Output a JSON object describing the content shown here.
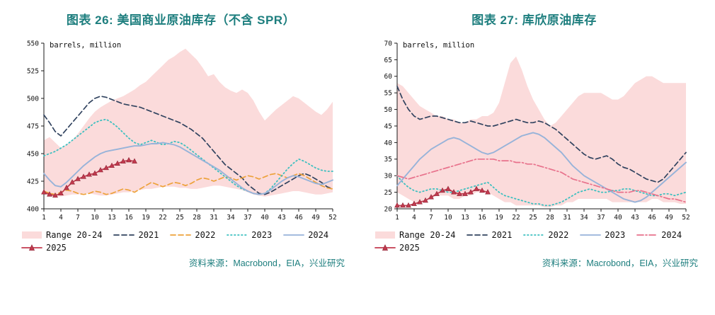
{
  "colors": {
    "accent_teal": "#1d7e7e",
    "axis": "#1a1a1a",
    "range_pink": "#fbdbdb"
  },
  "chart_data": [
    {
      "type": "line",
      "title": "图表 26: 美国商业原油库存（不含 SPR）",
      "unit_label": "barrels, million",
      "source": "资料来源：Macrobond，EIA，兴业研究",
      "xlabel": "",
      "ylabel": "barrels, million",
      "x_range": [
        1,
        52
      ],
      "xticks": [
        1,
        4,
        7,
        10,
        13,
        16,
        19,
        22,
        25,
        28,
        31,
        34,
        37,
        40,
        43,
        46,
        49,
        52
      ],
      "ylim": [
        400,
        550
      ],
      "yticks": [
        400,
        425,
        450,
        475,
        500,
        525,
        550
      ],
      "grid": false,
      "legend_position": "bottom",
      "range_band": {
        "name": "Range 20-24",
        "fill": "#fbdbdb",
        "upper": [
          462,
          465,
          460,
          455,
          458,
          462,
          468,
          475,
          482,
          488,
          492,
          495,
          498,
          500,
          502,
          505,
          508,
          512,
          515,
          520,
          525,
          530,
          535,
          538,
          542,
          545,
          540,
          535,
          528,
          520,
          522,
          515,
          510,
          507,
          505,
          508,
          505,
          498,
          488,
          480,
          485,
          490,
          494,
          498,
          502,
          500,
          496,
          492,
          488,
          485,
          490,
          497
        ],
        "lower": [
          413,
          412,
          411,
          411,
          412,
          413,
          413,
          414,
          414,
          413,
          412,
          412,
          413,
          414,
          415,
          415,
          416,
          417,
          418,
          418,
          419,
          420,
          420,
          420,
          419,
          419,
          418,
          418,
          419,
          420,
          421,
          421,
          420,
          419,
          418,
          417,
          415,
          413,
          412,
          411,
          412,
          413,
          414,
          415,
          416,
          416,
          415,
          414,
          413,
          413,
          414,
          415
        ]
      },
      "series": [
        {
          "name": "2021",
          "color": "#31435f",
          "style": "dashed",
          "width": 1.7,
          "values": [
            485,
            478,
            470,
            466,
            472,
            478,
            484,
            490,
            496,
            500,
            502,
            501,
            499,
            497,
            495,
            494,
            493,
            492,
            490,
            488,
            486,
            484,
            482,
            480,
            478,
            475,
            472,
            468,
            464,
            458,
            452,
            446,
            440,
            436,
            432,
            428,
            422,
            418,
            414,
            413,
            415,
            418,
            421,
            424,
            427,
            430,
            432,
            430,
            427,
            424,
            420,
            418
          ]
        },
        {
          "name": "2022",
          "color": "#eda23b",
          "style": "dashed",
          "width": 1.7,
          "values": [
            416,
            414,
            413,
            415,
            417,
            416,
            414,
            413,
            414,
            416,
            415,
            413,
            414,
            416,
            418,
            417,
            415,
            418,
            421,
            424,
            422,
            420,
            422,
            424,
            423,
            421,
            423,
            426,
            428,
            427,
            425,
            427,
            429,
            428,
            426,
            428,
            430,
            429,
            427,
            429,
            431,
            432,
            430,
            428,
            430,
            432,
            430,
            427,
            424,
            421,
            419,
            418
          ]
        },
        {
          "name": "2023",
          "color": "#3dc0c0",
          "style": "dotted",
          "width": 1.8,
          "values": [
            448,
            450,
            452,
            455,
            458,
            462,
            466,
            470,
            474,
            478,
            480,
            481,
            478,
            474,
            469,
            464,
            460,
            458,
            460,
            462,
            460,
            458,
            459,
            461,
            460,
            457,
            453,
            449,
            445,
            441,
            437,
            433,
            429,
            425,
            421,
            418,
            416,
            414,
            413,
            414,
            418,
            424,
            430,
            436,
            441,
            445,
            443,
            440,
            437,
            435,
            434,
            434
          ]
        },
        {
          "name": "2024",
          "color": "#97b3d9",
          "style": "solid",
          "width": 1.9,
          "values": [
            432,
            426,
            421,
            420,
            424,
            429,
            434,
            439,
            443,
            447,
            450,
            452,
            453,
            454,
            455,
            456,
            457,
            457,
            458,
            459,
            459,
            460,
            459,
            458,
            456,
            453,
            450,
            447,
            444,
            441,
            438,
            435,
            431,
            427,
            423,
            419,
            416,
            414,
            413,
            414,
            417,
            421,
            425,
            428,
            430,
            429,
            427,
            425,
            423,
            422,
            424,
            426
          ]
        },
        {
          "name": "2025",
          "color": "#c23a4e",
          "style": "solid",
          "width": 1.7,
          "marker": "triangle",
          "values": [
            415,
            413,
            412,
            414,
            419,
            424,
            427,
            429,
            431,
            432,
            435,
            437,
            439,
            441,
            443,
            444,
            443
          ]
        }
      ]
    },
    {
      "type": "line",
      "title": "图表 27: 库欣原油库存",
      "unit_label": "barrels, million",
      "source": "资料来源：Macrobond，EIA，兴业研究",
      "xlabel": "",
      "ylabel": "barrels, million",
      "x_range": [
        1,
        52
      ],
      "xticks": [
        1,
        4,
        7,
        10,
        13,
        16,
        19,
        22,
        25,
        28,
        31,
        34,
        37,
        40,
        43,
        46,
        49,
        52
      ],
      "ylim": [
        20,
        70
      ],
      "yticks": [
        20,
        25,
        30,
        35,
        40,
        45,
        50,
        55,
        60,
        65,
        70
      ],
      "grid": false,
      "legend_position": "bottom",
      "range_band": {
        "name": "Range 20-24",
        "fill": "#fbdbdb",
        "upper": [
          58,
          57,
          55,
          53,
          51,
          50,
          49,
          48,
          48,
          47,
          47,
          46,
          46,
          47,
          47,
          48,
          48,
          49,
          52,
          58,
          64,
          66,
          62,
          57,
          53,
          50,
          47,
          45,
          46,
          48,
          50,
          52,
          54,
          55,
          55,
          55,
          55,
          54,
          53,
          53,
          54,
          56,
          58,
          59,
          60,
          60,
          59,
          58,
          58,
          58,
          58,
          58
        ],
        "lower": [
          25,
          24,
          23,
          22,
          22,
          23,
          23,
          24,
          24,
          24,
          23,
          23,
          24,
          24,
          25,
          25,
          25,
          24,
          23,
          22,
          22,
          21,
          21,
          21,
          21,
          21,
          20.5,
          20.5,
          21,
          21,
          22,
          22,
          23,
          23,
          23,
          23,
          23,
          23,
          22,
          22,
          22,
          22,
          22,
          22,
          22,
          23,
          23,
          22,
          22,
          22,
          21.5,
          21.5
        ]
      },
      "series": [
        {
          "name": "2021",
          "color": "#31435f",
          "style": "dashed",
          "width": 1.7,
          "values": [
            57,
            53,
            50,
            48,
            47,
            47.5,
            48,
            48,
            47.5,
            47,
            46.5,
            46,
            46,
            46.5,
            46,
            45.5,
            45,
            45,
            45.5,
            46,
            46.5,
            47,
            46.5,
            46,
            46,
            46.5,
            46,
            45,
            44,
            42.5,
            41,
            39.5,
            38,
            36.5,
            35.5,
            35,
            35.5,
            36,
            35,
            33.5,
            32.5,
            32,
            31,
            30,
            29,
            28.5,
            28,
            29,
            31,
            33,
            35,
            37
          ]
        },
        {
          "name": "2022",
          "color": "#3dc0c0",
          "style": "dotted",
          "width": 1.8,
          "values": [
            30,
            28,
            26.5,
            25.5,
            25,
            25.5,
            26,
            26,
            25.5,
            25,
            25,
            25.5,
            26,
            26.5,
            27,
            27.5,
            28,
            26.5,
            25,
            24,
            23.5,
            23,
            22.5,
            22,
            21.5,
            21.5,
            21,
            21,
            21.5,
            22,
            23,
            24,
            25,
            25.5,
            26,
            25.5,
            25,
            25,
            25.5,
            25.5,
            26,
            26,
            25.5,
            25,
            24.5,
            24,
            24,
            24.5,
            24.5,
            24,
            24.5,
            25
          ]
        },
        {
          "name": "2023",
          "color": "#97b3d9",
          "style": "solid",
          "width": 1.9,
          "values": [
            27,
            29,
            31,
            33,
            35,
            36.5,
            38,
            39,
            40,
            41,
            41.5,
            41,
            40,
            39,
            38,
            37,
            36.5,
            37,
            38,
            39,
            40,
            41,
            42,
            42.5,
            43,
            42.5,
            41.5,
            40,
            38.5,
            37,
            35,
            33,
            31.5,
            30,
            29,
            28,
            27,
            26,
            25,
            24,
            23,
            22.5,
            22,
            22.5,
            23.5,
            25,
            26.5,
            28,
            29.5,
            31,
            32.5,
            34
          ]
        },
        {
          "name": "2024",
          "color": "#e8728c",
          "style": "dashdot",
          "width": 1.7,
          "values": [
            30,
            29.5,
            29,
            29.5,
            30,
            30.5,
            31,
            31.5,
            32,
            32.5,
            33,
            33.5,
            34,
            34.5,
            35,
            35,
            35,
            35,
            34.5,
            34.5,
            34.5,
            34,
            34,
            33.5,
            33.5,
            33,
            32.5,
            32,
            31.5,
            31,
            30,
            29,
            28.5,
            28,
            27.5,
            27,
            26.5,
            26,
            25.5,
            25,
            25,
            25,
            25.5,
            25.5,
            25,
            24.5,
            24,
            23.5,
            23,
            23,
            22.5,
            22
          ]
        },
        {
          "name": "2025",
          "color": "#c23a4e",
          "style": "solid",
          "width": 1.7,
          "marker": "triangle",
          "values": [
            21,
            21,
            21,
            21.5,
            22,
            22.5,
            23.5,
            24.5,
            25.5,
            26,
            25,
            24.5,
            24.5,
            25,
            26,
            25.5,
            25
          ]
        }
      ]
    }
  ]
}
